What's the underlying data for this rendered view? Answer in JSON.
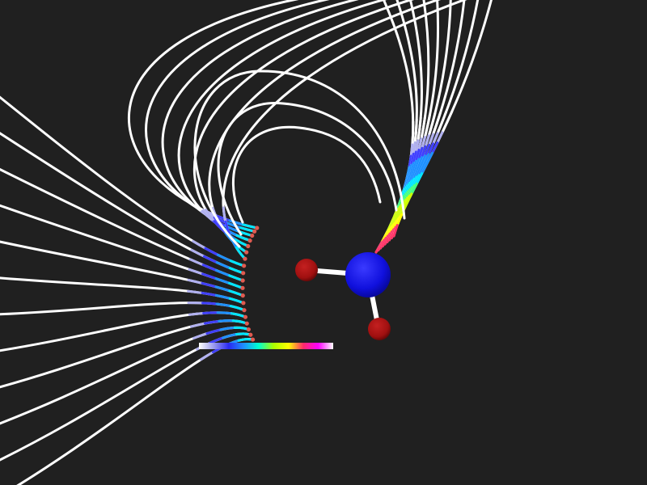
{
  "scene": {
    "background": "#202020",
    "line_color": "#ffffff",
    "endpoint_color": "#e05a50",
    "gradient_stops": [
      "#ffffff",
      "#9a9aee",
      "#2a2af0",
      "#1e90ff",
      "#00ffd0",
      "#aaff00",
      "#ffff00",
      "#ff2a6a",
      "#ff00ff",
      "#ffffff"
    ],
    "field_line_count": {
      "outer": 19,
      "inner": 9
    },
    "legend_bar_present": true
  },
  "molecule": {
    "center_atom": {
      "icon": "sphere",
      "color": "#1010dd"
    },
    "bonded_atoms": [
      {
        "icon": "sphere",
        "color": "#a01010"
      },
      {
        "icon": "sphere",
        "color": "#a01010"
      }
    ],
    "bond_color": "#ffffff"
  }
}
